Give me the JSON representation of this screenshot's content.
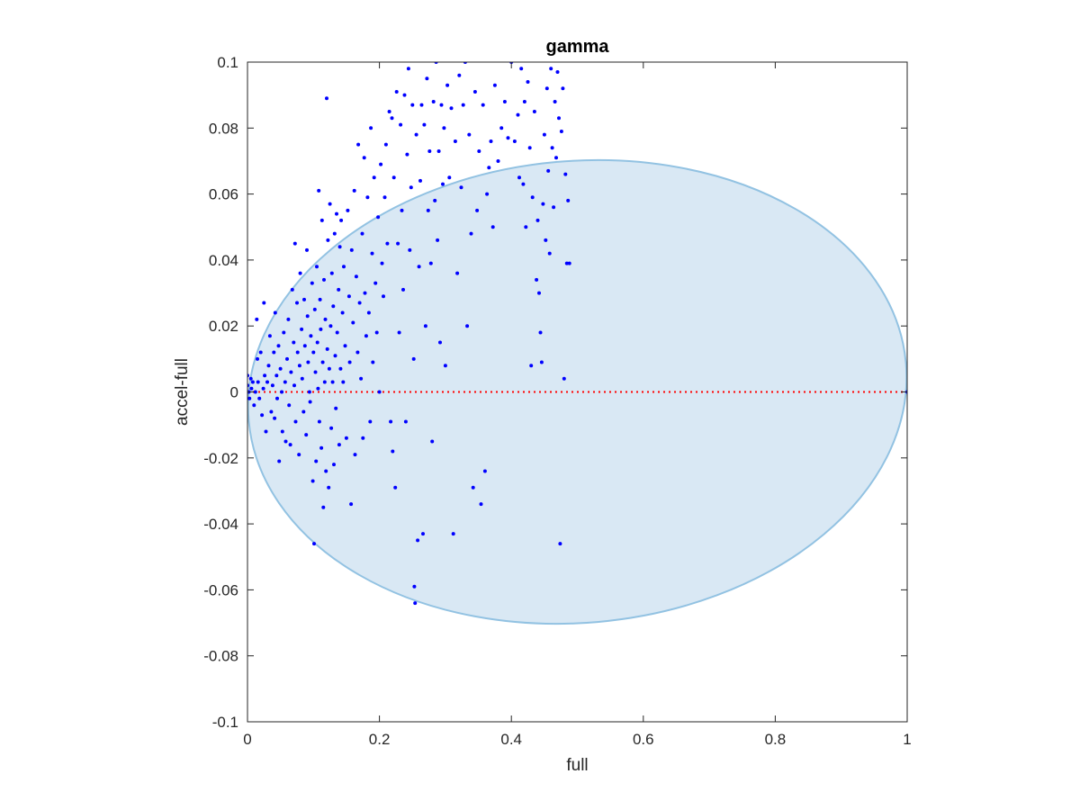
{
  "chart_data": {
    "type": "scatter",
    "title": "gamma",
    "xlabel": "full",
    "ylabel": "accel-full",
    "xlim": [
      0,
      1
    ],
    "ylim": [
      -0.1,
      0.1
    ],
    "xticks": [
      0,
      0.2,
      0.4,
      0.6,
      0.8,
      1
    ],
    "xtick_labels": [
      "0",
      "0.2",
      "0.4",
      "0.6",
      "0.8",
      "1"
    ],
    "yticks": [
      -0.1,
      -0.08,
      -0.06,
      -0.04,
      -0.02,
      0,
      0.02,
      0.04,
      0.06,
      0.08,
      0.1
    ],
    "ytick_labels": [
      "-0.1",
      "-0.08",
      "-0.06",
      "-0.04",
      "-0.02",
      "0",
      "0.02",
      "0.04",
      "0.06",
      "0.08",
      "0.1"
    ],
    "grid": false,
    "box": true,
    "reference_line": {
      "y": 0,
      "color": "#ff0000",
      "style": "dotted"
    },
    "ellipse": {
      "center": [
        0.5,
        0
      ],
      "radii": [
        0.5,
        0.07
      ],
      "rotation_deg": -5,
      "fill": "#d9e8f4",
      "edge": "#92c2e2"
    },
    "marker_color": "#0000ff",
    "points": [
      [
        0.0,
        0.005
      ],
      [
        0.0,
        0.002
      ],
      [
        0.002,
        0.0
      ],
      [
        0.003,
        -0.002
      ],
      [
        0.005,
        0.004
      ],
      [
        0.006,
        0.001
      ],
      [
        0.008,
        0.003
      ],
      [
        0.01,
        -0.004
      ],
      [
        0.012,
        0.0
      ],
      [
        0.014,
        0.022
      ],
      [
        0.015,
        0.01
      ],
      [
        0.016,
        0.003
      ],
      [
        0.018,
        -0.002
      ],
      [
        0.02,
        0.012
      ],
      [
        0.022,
        -0.007
      ],
      [
        0.024,
        0.001
      ],
      [
        0.025,
        0.027
      ],
      [
        0.026,
        0.005
      ],
      [
        0.028,
        -0.012
      ],
      [
        0.03,
        0.003
      ],
      [
        0.032,
        0.008
      ],
      [
        0.034,
        0.017
      ],
      [
        0.036,
        -0.006
      ],
      [
        0.038,
        0.002
      ],
      [
        0.04,
        0.012
      ],
      [
        0.041,
        -0.008
      ],
      [
        0.042,
        0.024
      ],
      [
        0.044,
        0.005
      ],
      [
        0.045,
        -0.002
      ],
      [
        0.047,
        0.014
      ],
      [
        0.048,
        -0.021
      ],
      [
        0.05,
        0.007
      ],
      [
        0.052,
        0.0
      ],
      [
        0.053,
        -0.012
      ],
      [
        0.055,
        0.018
      ],
      [
        0.057,
        0.003
      ],
      [
        0.058,
        -0.015
      ],
      [
        0.06,
        0.01
      ],
      [
        0.062,
        0.022
      ],
      [
        0.063,
        -0.004
      ],
      [
        0.065,
        -0.016
      ],
      [
        0.066,
        0.006
      ],
      [
        0.068,
        0.031
      ],
      [
        0.07,
        0.015
      ],
      [
        0.071,
        0.002
      ],
      [
        0.072,
        0.045
      ],
      [
        0.073,
        -0.009
      ],
      [
        0.075,
        0.027
      ],
      [
        0.076,
        0.012
      ],
      [
        0.078,
        -0.019
      ],
      [
        0.079,
        0.008
      ],
      [
        0.08,
        0.036
      ],
      [
        0.082,
        0.019
      ],
      [
        0.083,
        0.004
      ],
      [
        0.085,
        -0.006
      ],
      [
        0.086,
        0.028
      ],
      [
        0.087,
        0.014
      ],
      [
        0.089,
        -0.013
      ],
      [
        0.09,
        0.043
      ],
      [
        0.091,
        0.023
      ],
      [
        0.092,
        0.009
      ],
      [
        0.094,
        0.0
      ],
      [
        0.095,
        -0.003
      ],
      [
        0.096,
        0.017
      ],
      [
        0.098,
        0.033
      ],
      [
        0.099,
        -0.027
      ],
      [
        0.1,
        0.012
      ],
      [
        0.101,
        -0.046
      ],
      [
        0.102,
        0.025
      ],
      [
        0.103,
        0.006
      ],
      [
        0.104,
        -0.021
      ],
      [
        0.105,
        0.038
      ],
      [
        0.106,
        0.015
      ],
      [
        0.107,
        0.001
      ],
      [
        0.108,
        0.061
      ],
      [
        0.109,
        -0.009
      ],
      [
        0.11,
        0.028
      ],
      [
        0.111,
        0.019
      ],
      [
        0.112,
        -0.017
      ],
      [
        0.113,
        0.052
      ],
      [
        0.114,
        0.009
      ],
      [
        0.115,
        -0.035
      ],
      [
        0.116,
        0.034
      ],
      [
        0.117,
        0.003
      ],
      [
        0.118,
        0.022
      ],
      [
        0.119,
        -0.024
      ],
      [
        0.12,
        0.089
      ],
      [
        0.121,
        0.013
      ],
      [
        0.122,
        0.046
      ],
      [
        0.123,
        -0.029
      ],
      [
        0.124,
        0.007
      ],
      [
        0.125,
        0.057
      ],
      [
        0.126,
        0.02
      ],
      [
        0.127,
        -0.011
      ],
      [
        0.128,
        0.036
      ],
      [
        0.129,
        0.003
      ],
      [
        0.13,
        0.026
      ],
      [
        0.131,
        -0.022
      ],
      [
        0.132,
        0.048
      ],
      [
        0.133,
        0.011
      ],
      [
        0.134,
        -0.005
      ],
      [
        0.135,
        0.054
      ],
      [
        0.136,
        0.018
      ],
      [
        0.138,
        0.031
      ],
      [
        0.139,
        -0.016
      ],
      [
        0.14,
        0.044
      ],
      [
        0.141,
        0.007
      ],
      [
        0.142,
        0.052
      ],
      [
        0.144,
        0.024
      ],
      [
        0.145,
        0.003
      ],
      [
        0.146,
        0.038
      ],
      [
        0.148,
        0.014
      ],
      [
        0.15,
        -0.014
      ],
      [
        0.152,
        0.055
      ],
      [
        0.154,
        0.029
      ],
      [
        0.155,
        0.009
      ],
      [
        0.157,
        -0.034
      ],
      [
        0.158,
        0.043
      ],
      [
        0.16,
        0.021
      ],
      [
        0.162,
        0.061
      ],
      [
        0.163,
        -0.019
      ],
      [
        0.165,
        0.035
      ],
      [
        0.167,
        0.012
      ],
      [
        0.168,
        0.075
      ],
      [
        0.17,
        0.027
      ],
      [
        0.172,
        0.004
      ],
      [
        0.174,
        0.048
      ],
      [
        0.175,
        -0.014
      ],
      [
        0.177,
        0.071
      ],
      [
        0.178,
        0.03
      ],
      [
        0.18,
        0.017
      ],
      [
        0.182,
        0.059
      ],
      [
        0.184,
        0.024
      ],
      [
        0.186,
        -0.009
      ],
      [
        0.187,
        0.08
      ],
      [
        0.189,
        0.042
      ],
      [
        0.19,
        0.009
      ],
      [
        0.192,
        0.065
      ],
      [
        0.194,
        0.033
      ],
      [
        0.196,
        0.018
      ],
      [
        0.198,
        0.053
      ],
      [
        0.2,
        0.0
      ],
      [
        0.202,
        0.069
      ],
      [
        0.204,
        0.039
      ],
      [
        0.206,
        0.029
      ],
      [
        0.208,
        0.059
      ],
      [
        0.21,
        0.075
      ],
      [
        0.212,
        0.045
      ],
      [
        0.215,
        0.085
      ],
      [
        0.217,
        -0.009
      ],
      [
        0.219,
        0.083
      ],
      [
        0.22,
        -0.018
      ],
      [
        0.222,
        0.065
      ],
      [
        0.224,
        -0.029
      ],
      [
        0.226,
        0.091
      ],
      [
        0.228,
        0.045
      ],
      [
        0.23,
        0.018
      ],
      [
        0.232,
        0.081
      ],
      [
        0.234,
        0.055
      ],
      [
        0.236,
        0.031
      ],
      [
        0.238,
        0.09
      ],
      [
        0.24,
        -0.009
      ],
      [
        0.242,
        0.072
      ],
      [
        0.244,
        0.098
      ],
      [
        0.246,
        0.043
      ],
      [
        0.248,
        0.062
      ],
      [
        0.25,
        0.087
      ],
      [
        0.252,
        0.01
      ],
      [
        0.253,
        -0.059
      ],
      [
        0.254,
        -0.064
      ],
      [
        0.256,
        0.078
      ],
      [
        0.258,
        -0.045
      ],
      [
        0.26,
        0.038
      ],
      [
        0.262,
        0.064
      ],
      [
        0.264,
        0.087
      ],
      [
        0.266,
        -0.043
      ],
      [
        0.268,
        0.081
      ],
      [
        0.27,
        0.02
      ],
      [
        0.272,
        0.095
      ],
      [
        0.274,
        0.055
      ],
      [
        0.276,
        0.073
      ],
      [
        0.278,
        0.039
      ],
      [
        0.28,
        -0.015
      ],
      [
        0.282,
        0.088
      ],
      [
        0.284,
        0.058
      ],
      [
        0.286,
        0.1
      ],
      [
        0.288,
        0.046
      ],
      [
        0.29,
        0.073
      ],
      [
        0.292,
        0.015
      ],
      [
        0.294,
        0.087
      ],
      [
        0.296,
        0.063
      ],
      [
        0.298,
        0.08
      ],
      [
        0.3,
        0.008
      ],
      [
        0.303,
        0.093
      ],
      [
        0.306,
        0.065
      ],
      [
        0.309,
        0.086
      ],
      [
        0.312,
        -0.043
      ],
      [
        0.315,
        0.076
      ],
      [
        0.318,
        0.036
      ],
      [
        0.321,
        0.096
      ],
      [
        0.324,
        0.062
      ],
      [
        0.327,
        0.087
      ],
      [
        0.33,
        0.1
      ],
      [
        0.333,
        0.02
      ],
      [
        0.336,
        0.078
      ],
      [
        0.339,
        0.048
      ],
      [
        0.342,
        -0.029
      ],
      [
        0.345,
        0.091
      ],
      [
        0.348,
        0.055
      ],
      [
        0.351,
        0.073
      ],
      [
        0.354,
        -0.034
      ],
      [
        0.357,
        0.087
      ],
      [
        0.36,
        -0.024
      ],
      [
        0.363,
        0.06
      ],
      [
        0.366,
        0.068
      ],
      [
        0.369,
        0.076
      ],
      [
        0.372,
        0.05
      ],
      [
        0.375,
        0.093
      ],
      [
        0.38,
        0.07
      ],
      [
        0.385,
        0.08
      ],
      [
        0.39,
        0.088
      ],
      [
        0.395,
        0.077
      ],
      [
        0.4,
        0.1
      ],
      [
        0.405,
        0.076
      ],
      [
        0.41,
        0.084
      ],
      [
        0.412,
        0.065
      ],
      [
        0.415,
        0.098
      ],
      [
        0.418,
        0.063
      ],
      [
        0.42,
        0.088
      ],
      [
        0.422,
        0.05
      ],
      [
        0.425,
        0.094
      ],
      [
        0.428,
        0.074
      ],
      [
        0.43,
        0.008
      ],
      [
        0.432,
        0.059
      ],
      [
        0.435,
        0.085
      ],
      [
        0.438,
        0.034
      ],
      [
        0.44,
        0.052
      ],
      [
        0.442,
        0.03
      ],
      [
        0.444,
        0.018
      ],
      [
        0.446,
        0.009
      ],
      [
        0.448,
        0.057
      ],
      [
        0.45,
        0.078
      ],
      [
        0.452,
        0.046
      ],
      [
        0.454,
        0.092
      ],
      [
        0.456,
        0.067
      ],
      [
        0.458,
        0.042
      ],
      [
        0.46,
        0.098
      ],
      [
        0.462,
        0.074
      ],
      [
        0.464,
        0.056
      ],
      [
        0.466,
        0.088
      ],
      [
        0.468,
        0.071
      ],
      [
        0.47,
        0.097
      ],
      [
        0.472,
        0.083
      ],
      [
        0.474,
        -0.046
      ],
      [
        0.476,
        0.079
      ],
      [
        0.478,
        0.092
      ],
      [
        0.48,
        0.004
      ],
      [
        0.482,
        0.066
      ],
      [
        0.484,
        0.039
      ],
      [
        0.486,
        0.058
      ],
      [
        0.488,
        0.039
      ],
      [
        1.0,
        0.0
      ]
    ]
  }
}
